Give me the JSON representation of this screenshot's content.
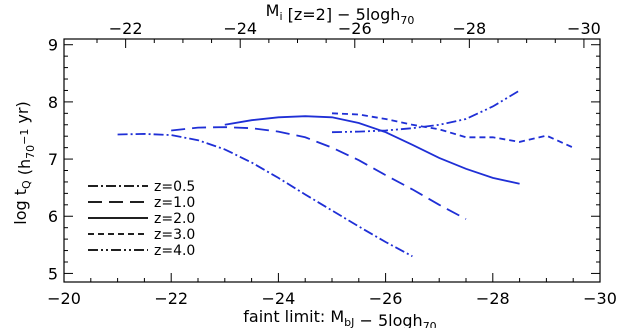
{
  "chart_data": {
    "type": "line",
    "xlabel": "faint limit: M_bJ − 5logh_70",
    "x2label": "M_i [z=2] − 5logh_70",
    "ylabel": "log t_Q (h_70^-1 yr)",
    "xlim": [
      -20,
      -30
    ],
    "ylim": [
      4.85,
      9.1
    ],
    "x_ticks": [
      -20,
      -22,
      -24,
      -26,
      -28,
      -30
    ],
    "x2_ticks": [
      -22,
      -24,
      -26,
      -28,
      -30
    ],
    "x2_at_bottom": [
      [
        -22,
        -21.15
      ],
      [
        -30,
        -29.7
      ]
    ],
    "y_ticks": [
      5,
      6,
      7,
      8,
      9
    ],
    "legend_position": "lower-left",
    "line_color": "#1f2fd6",
    "legend_color": "#000000",
    "series": [
      {
        "name": "z=0.5",
        "dash": "dash-dot",
        "x": [
          -21.0,
          -21.5,
          -22.0,
          -22.5,
          -23.0,
          -23.5,
          -24.0,
          -24.5,
          -25.0,
          -25.5,
          -26.0,
          -26.5
        ],
        "y": [
          7.43,
          7.44,
          7.42,
          7.33,
          7.17,
          6.94,
          6.67,
          6.38,
          6.1,
          5.82,
          5.55,
          5.3
        ]
      },
      {
        "name": "z=1.0",
        "dash": "long-dash",
        "x": [
          -22.0,
          -22.5,
          -23.0,
          -23.5,
          -24.0,
          -24.5,
          -25.0,
          -25.5,
          -26.0,
          -26.5,
          -27.0,
          -27.5
        ],
        "y": [
          7.5,
          7.55,
          7.56,
          7.54,
          7.48,
          7.38,
          7.2,
          6.98,
          6.72,
          6.47,
          6.2,
          5.95
        ]
      },
      {
        "name": "z=2.0",
        "dash": "solid",
        "x": [
          -23.0,
          -23.5,
          -24.0,
          -24.5,
          -25.0,
          -25.5,
          -26.0,
          -26.5,
          -27.0,
          -27.5,
          -28.0,
          -28.5
        ],
        "y": [
          7.6,
          7.68,
          7.73,
          7.75,
          7.73,
          7.63,
          7.47,
          7.25,
          7.02,
          6.83,
          6.67,
          6.57
        ]
      },
      {
        "name": "z=3.0",
        "dash": "short-dash",
        "x": [
          -25.0,
          -25.5,
          -26.0,
          -26.5,
          -27.0,
          -27.5,
          -28.0,
          -28.5,
          -29.0,
          -29.5
        ],
        "y": [
          7.8,
          7.78,
          7.7,
          7.6,
          7.52,
          7.38,
          7.38,
          7.3,
          7.41,
          7.2
        ]
      },
      {
        "name": "z=4.0",
        "dash": "dash-dot-dot",
        "x": [
          -25.0,
          -25.5,
          -26.0,
          -26.5,
          -27.0,
          -27.5,
          -28.0,
          -28.5
        ],
        "y": [
          7.47,
          7.48,
          7.5,
          7.54,
          7.6,
          7.7,
          7.92,
          8.2
        ]
      }
    ]
  }
}
